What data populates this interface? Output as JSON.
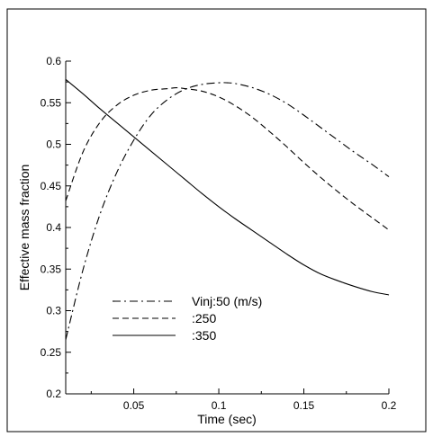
{
  "chart_data": {
    "type": "line",
    "title": "",
    "xlabel": "Time (sec)",
    "ylabel": "Effective mass fraction",
    "xlim": [
      0.01,
      0.2
    ],
    "ylim": [
      0.2,
      0.6
    ],
    "xticks": [
      0.05,
      0.1,
      0.15,
      0.2
    ],
    "xtick_labels": [
      "0.05",
      "0.1",
      "0.15",
      "0.2"
    ],
    "yticks": [
      0.2,
      0.25,
      0.3,
      0.35,
      0.4,
      0.45,
      0.5,
      0.55,
      0.6
    ],
    "ytick_labels": [
      "0.2",
      "0.25",
      "0.3",
      "0.35",
      "0.4",
      "0.45",
      "0.5",
      "0.55",
      "0.6"
    ],
    "grid": false,
    "legend_position": "lower-left",
    "series": [
      {
        "name": "Vinj:50 (m/s)",
        "dash": "dash-dot",
        "color": "#000000",
        "x": [
          0.01,
          0.02,
          0.03,
          0.04,
          0.05,
          0.06,
          0.07,
          0.08,
          0.09,
          0.1,
          0.105,
          0.11,
          0.12,
          0.13,
          0.14,
          0.15,
          0.16,
          0.17,
          0.18,
          0.19,
          0.2
        ],
        "y": [
          0.265,
          0.348,
          0.415,
          0.466,
          0.505,
          0.535,
          0.554,
          0.566,
          0.572,
          0.574,
          0.574,
          0.573,
          0.568,
          0.56,
          0.549,
          0.535,
          0.52,
          0.505,
          0.49,
          0.476,
          0.461
        ]
      },
      {
        "name": ":250",
        "dash": "dashed",
        "color": "#000000",
        "x": [
          0.01,
          0.02,
          0.03,
          0.04,
          0.05,
          0.06,
          0.07,
          0.075,
          0.08,
          0.09,
          0.1,
          0.11,
          0.12,
          0.13,
          0.14,
          0.15,
          0.16,
          0.17,
          0.18,
          0.19,
          0.2
        ],
        "y": [
          0.432,
          0.49,
          0.526,
          0.547,
          0.559,
          0.565,
          0.567,
          0.568,
          0.567,
          0.564,
          0.557,
          0.546,
          0.532,
          0.515,
          0.497,
          0.478,
          0.46,
          0.443,
          0.427,
          0.412,
          0.397
        ]
      },
      {
        "name": ":350",
        "dash": "solid",
        "color": "#000000",
        "x": [
          0.01,
          0.02,
          0.03,
          0.04,
          0.05,
          0.06,
          0.07,
          0.08,
          0.09,
          0.1,
          0.11,
          0.12,
          0.13,
          0.14,
          0.15,
          0.16,
          0.17,
          0.18,
          0.19,
          0.2
        ],
        "y": [
          0.578,
          0.561,
          0.543,
          0.526,
          0.509,
          0.492,
          0.475,
          0.458,
          0.441,
          0.425,
          0.41,
          0.396,
          0.382,
          0.368,
          0.355,
          0.344,
          0.336,
          0.329,
          0.323,
          0.319
        ]
      }
    ]
  }
}
